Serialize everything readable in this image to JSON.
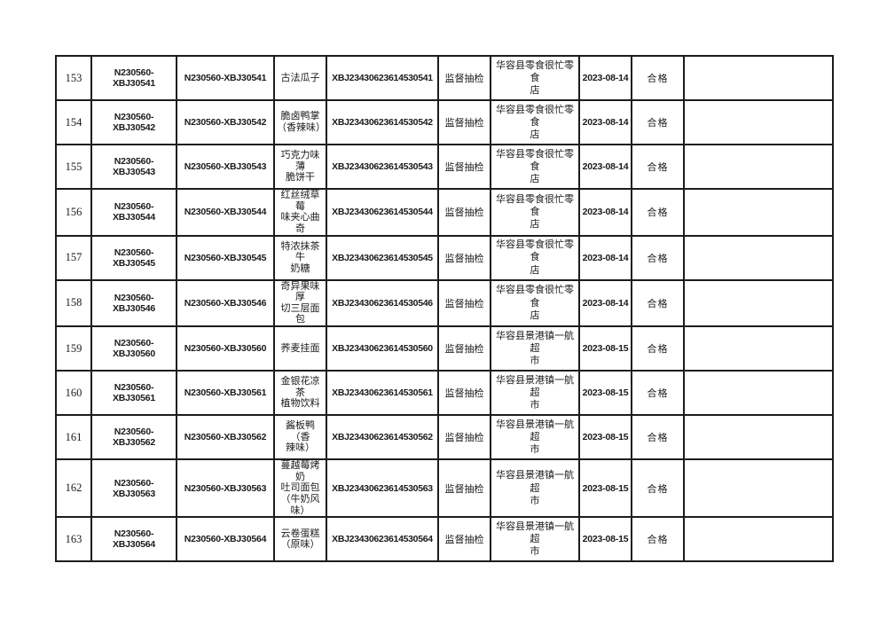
{
  "colors": {
    "page_background": "#ffffff",
    "table_border": "#1c1c1c",
    "text": "#1a1a1a"
  },
  "table": {
    "fields": [
      {
        "key": "no"
      },
      {
        "key": "id_a"
      },
      {
        "key": "id_b"
      },
      {
        "key": "product"
      },
      {
        "key": "sample_no"
      },
      {
        "key": "inspect_type"
      },
      {
        "key": "store"
      },
      {
        "key": "date"
      },
      {
        "key": "result"
      },
      {
        "key": "remark"
      }
    ],
    "rows": [
      {
        "no": "153",
        "id_a": "N230560-XBJ30541",
        "id_b": "N230560-XBJ30541",
        "product": "古法瓜子",
        "sample_no": "XBJ23430623614530541",
        "inspect_type": "监督抽检",
        "store": "华容县零食很忙零食\n店",
        "date": "2023-08-14",
        "result": "合格",
        "remark": ""
      },
      {
        "no": "154",
        "id_a": "N230560-XBJ30542",
        "id_b": "N230560-XBJ30542",
        "product": "脆卤鸭掌\n（香辣味）",
        "sample_no": "XBJ23430623614530542",
        "inspect_type": "监督抽检",
        "store": "华容县零食很忙零食\n店",
        "date": "2023-08-14",
        "result": "合格",
        "remark": ""
      },
      {
        "no": "155",
        "id_a": "N230560-XBJ30543",
        "id_b": "N230560-XBJ30543",
        "product": "巧克力味薄\n脆饼干",
        "sample_no": "XBJ23430623614530543",
        "inspect_type": "监督抽检",
        "store": "华容县零食很忙零食\n店",
        "date": "2023-08-14",
        "result": "合格",
        "remark": ""
      },
      {
        "no": "156",
        "id_a": "N230560-XBJ30544",
        "id_b": "N230560-XBJ30544",
        "product": "红丝绒草莓\n味夹心曲奇",
        "sample_no": "XBJ23430623614530544",
        "inspect_type": "监督抽检",
        "store": "华容县零食很忙零食\n店",
        "date": "2023-08-14",
        "result": "合格",
        "remark": ""
      },
      {
        "no": "157",
        "id_a": "N230560-XBJ30545",
        "id_b": "N230560-XBJ30545",
        "product": "特浓抹茶牛\n奶糖",
        "sample_no": "XBJ23430623614530545",
        "inspect_type": "监督抽检",
        "store": "华容县零食很忙零食\n店",
        "date": "2023-08-14",
        "result": "合格",
        "remark": ""
      },
      {
        "no": "158",
        "id_a": "N230560-XBJ30546",
        "id_b": "N230560-XBJ30546",
        "product": "奇异果味厚\n切三层面包",
        "sample_no": "XBJ23430623614530546",
        "inspect_type": "监督抽检",
        "store": "华容县零食很忙零食\n店",
        "date": "2023-08-14",
        "result": "合格",
        "remark": ""
      },
      {
        "no": "159",
        "id_a": "N230560-XBJ30560",
        "id_b": "N230560-XBJ30560",
        "product": "荞麦挂面",
        "sample_no": "XBJ23430623614530560",
        "inspect_type": "监督抽检",
        "store": "华容县景港镇一航超\n市",
        "date": "2023-08-15",
        "result": "合格",
        "remark": ""
      },
      {
        "no": "160",
        "id_a": "N230560-XBJ30561",
        "id_b": "N230560-XBJ30561",
        "product": "金银花凉茶\n植物饮料",
        "sample_no": "XBJ23430623614530561",
        "inspect_type": "监督抽检",
        "store": "华容县景港镇一航超\n市",
        "date": "2023-08-15",
        "result": "合格",
        "remark": ""
      },
      {
        "no": "161",
        "id_a": "N230560-XBJ30562",
        "id_b": "N230560-XBJ30562",
        "product": "酱板鸭（香\n辣味）",
        "sample_no": "XBJ23430623614530562",
        "inspect_type": "监督抽检",
        "store": "华容县景港镇一航超\n市",
        "date": "2023-08-15",
        "result": "合格",
        "remark": ""
      },
      {
        "no": "162",
        "id_a": "N230560-XBJ30563",
        "id_b": "N230560-XBJ30563",
        "product": "蔓越莓烤奶\n吐司面包\n（牛奶风\n味）",
        "sample_no": "XBJ23430623614530563",
        "inspect_type": "监督抽检",
        "store": "华容县景港镇一航超\n市",
        "date": "2023-08-15",
        "result": "合格",
        "remark": ""
      },
      {
        "no": "163",
        "id_a": "N230560-XBJ30564",
        "id_b": "N230560-XBJ30564",
        "product": "云卷蛋糕\n（原味）",
        "sample_no": "XBJ23430623614530564",
        "inspect_type": "监督抽检",
        "store": "华容县景港镇一航超\n市",
        "date": "2023-08-15",
        "result": "合格",
        "remark": ""
      }
    ]
  }
}
